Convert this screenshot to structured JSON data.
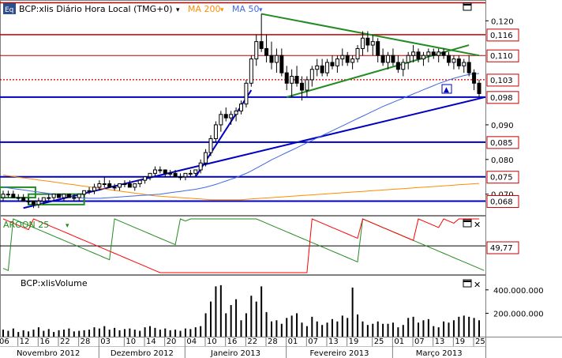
{
  "colors": {
    "frame": "#808080",
    "grid": "#000000",
    "candle_up": "#ffffff",
    "candle_down": "#000000",
    "support_lines": "#0000c0",
    "resistance_lines": "#c00000",
    "trend_green": "#228b22",
    "ma200": "#ff8c00",
    "ma50": "#4169e1",
    "aroon_up": "#228b22",
    "aroon_down": "#ff0000",
    "label_box_blue": "#0000c0",
    "label_box_red": "#c00000"
  },
  "price_panel": {
    "eq_badge": "Eq",
    "symbol_label": "BCP:xlis Diário Hora Local (TMG+0)",
    "ma200_label": "MA 200",
    "ma50_label": "MA 50",
    "y_ticks": [
      "0,120",
      "0,090",
      "0,080",
      "0,070"
    ],
    "price_boxes": [
      {
        "value": "0,116",
        "kind": "red"
      },
      {
        "value": "0,110",
        "kind": "red"
      },
      {
        "value": "0,103",
        "kind": "red"
      },
      {
        "value": "0,098",
        "kind": "red"
      },
      {
        "value": "0,085",
        "kind": "red"
      },
      {
        "value": "0,075",
        "kind": "red"
      },
      {
        "value": "0,068",
        "kind": "red"
      }
    ]
  },
  "aroon_panel": {
    "label": "AROON 25",
    "value_box": "49,77"
  },
  "volume_panel": {
    "label": "BCP:xlisVolume",
    "y_ticks": [
      "400.000.000",
      "200.000.000"
    ]
  },
  "x_axis": {
    "day_ticks": [
      "06",
      "12",
      "16",
      "22",
      "28",
      "03",
      "10",
      "14",
      "20",
      "04",
      "10",
      "16",
      "22",
      "28",
      "01",
      "07",
      "13",
      "19",
      "25",
      "01",
      "07",
      "13",
      "19",
      "25"
    ],
    "months": [
      "Novembro 2012",
      "Dezembro 2012",
      "Janeiro 2013",
      "Fevereiro 2013",
      "Março 2013"
    ]
  },
  "chart_data": {
    "type": "candlestick",
    "symbol": "BCP:xlis",
    "price_ylim": [
      0.064,
      0.126
    ],
    "horizontal_levels": [
      0.116,
      0.11,
      0.103,
      0.098,
      0.085,
      0.075,
      0.068
    ],
    "candles": [
      [
        0.069,
        0.071,
        0.068,
        0.07
      ],
      [
        0.07,
        0.071,
        0.069,
        0.07
      ],
      [
        0.07,
        0.071,
        0.069,
        0.069
      ],
      [
        0.069,
        0.07,
        0.068,
        0.069
      ],
      [
        0.069,
        0.07,
        0.068,
        0.068
      ],
      [
        0.068,
        0.069,
        0.067,
        0.068
      ],
      [
        0.068,
        0.068,
        0.066,
        0.067
      ],
      [
        0.067,
        0.069,
        0.066,
        0.068
      ],
      [
        0.068,
        0.069,
        0.067,
        0.069
      ],
      [
        0.069,
        0.07,
        0.068,
        0.069
      ],
      [
        0.069,
        0.07,
        0.068,
        0.07
      ],
      [
        0.07,
        0.07,
        0.069,
        0.069
      ],
      [
        0.069,
        0.07,
        0.068,
        0.07
      ],
      [
        0.07,
        0.07,
        0.069,
        0.069
      ],
      [
        0.069,
        0.07,
        0.068,
        0.069
      ],
      [
        0.069,
        0.07,
        0.068,
        0.07
      ],
      [
        0.07,
        0.071,
        0.069,
        0.071
      ],
      [
        0.071,
        0.072,
        0.07,
        0.071
      ],
      [
        0.071,
        0.073,
        0.07,
        0.072
      ],
      [
        0.072,
        0.074,
        0.071,
        0.073
      ],
      [
        0.073,
        0.075,
        0.072,
        0.073
      ],
      [
        0.073,
        0.074,
        0.072,
        0.072
      ],
      [
        0.072,
        0.073,
        0.071,
        0.072
      ],
      [
        0.072,
        0.073,
        0.071,
        0.073
      ],
      [
        0.073,
        0.074,
        0.072,
        0.073
      ],
      [
        0.073,
        0.074,
        0.072,
        0.072
      ],
      [
        0.072,
        0.073,
        0.071,
        0.073
      ],
      [
        0.073,
        0.074,
        0.072,
        0.074
      ],
      [
        0.074,
        0.075,
        0.073,
        0.075
      ],
      [
        0.075,
        0.076,
        0.074,
        0.076
      ],
      [
        0.076,
        0.078,
        0.075,
        0.077
      ],
      [
        0.077,
        0.078,
        0.076,
        0.077
      ],
      [
        0.077,
        0.077,
        0.075,
        0.076
      ],
      [
        0.076,
        0.077,
        0.075,
        0.076
      ],
      [
        0.076,
        0.077,
        0.075,
        0.075
      ],
      [
        0.075,
        0.076,
        0.074,
        0.075
      ],
      [
        0.075,
        0.076,
        0.074,
        0.076
      ],
      [
        0.076,
        0.077,
        0.075,
        0.076
      ],
      [
        0.076,
        0.077,
        0.075,
        0.077
      ],
      [
        0.077,
        0.08,
        0.076,
        0.079
      ],
      [
        0.079,
        0.083,
        0.078,
        0.082
      ],
      [
        0.082,
        0.087,
        0.081,
        0.086
      ],
      [
        0.086,
        0.091,
        0.085,
        0.09
      ],
      [
        0.09,
        0.094,
        0.088,
        0.093
      ],
      [
        0.093,
        0.095,
        0.091,
        0.092
      ],
      [
        0.092,
        0.094,
        0.09,
        0.093
      ],
      [
        0.093,
        0.095,
        0.091,
        0.094
      ],
      [
        0.094,
        0.097,
        0.093,
        0.096
      ],
      [
        0.096,
        0.103,
        0.095,
        0.102
      ],
      [
        0.102,
        0.11,
        0.101,
        0.109
      ],
      [
        0.109,
        0.116,
        0.107,
        0.114
      ],
      [
        0.114,
        0.122,
        0.111,
        0.112
      ],
      [
        0.112,
        0.116,
        0.108,
        0.11
      ],
      [
        0.11,
        0.114,
        0.106,
        0.108
      ],
      [
        0.108,
        0.112,
        0.105,
        0.11
      ],
      [
        0.11,
        0.112,
        0.104,
        0.105
      ],
      [
        0.105,
        0.107,
        0.1,
        0.102
      ],
      [
        0.102,
        0.106,
        0.098,
        0.104
      ],
      [
        0.104,
        0.107,
        0.101,
        0.102
      ],
      [
        0.102,
        0.104,
        0.097,
        0.1
      ],
      [
        0.1,
        0.104,
        0.098,
        0.103
      ],
      [
        0.103,
        0.107,
        0.101,
        0.106
      ],
      [
        0.106,
        0.109,
        0.104,
        0.107
      ],
      [
        0.107,
        0.109,
        0.104,
        0.105
      ],
      [
        0.105,
        0.109,
        0.104,
        0.108
      ],
      [
        0.108,
        0.11,
        0.106,
        0.107
      ],
      [
        0.107,
        0.11,
        0.105,
        0.109
      ],
      [
        0.109,
        0.112,
        0.107,
        0.11
      ],
      [
        0.11,
        0.111,
        0.107,
        0.108
      ],
      [
        0.108,
        0.11,
        0.106,
        0.109
      ],
      [
        0.109,
        0.113,
        0.108,
        0.112
      ],
      [
        0.112,
        0.117,
        0.11,
        0.115
      ],
      [
        0.115,
        0.117,
        0.111,
        0.113
      ],
      [
        0.113,
        0.116,
        0.11,
        0.114
      ],
      [
        0.114,
        0.115,
        0.108,
        0.11
      ],
      [
        0.11,
        0.112,
        0.107,
        0.108
      ],
      [
        0.108,
        0.111,
        0.106,
        0.11
      ],
      [
        0.11,
        0.112,
        0.107,
        0.108
      ],
      [
        0.108,
        0.11,
        0.105,
        0.106
      ],
      [
        0.106,
        0.109,
        0.104,
        0.108
      ],
      [
        0.108,
        0.111,
        0.106,
        0.11
      ],
      [
        0.11,
        0.113,
        0.108,
        0.111
      ],
      [
        0.111,
        0.112,
        0.108,
        0.109
      ],
      [
        0.109,
        0.111,
        0.107,
        0.11
      ],
      [
        0.11,
        0.112,
        0.108,
        0.111
      ],
      [
        0.111,
        0.112,
        0.109,
        0.11
      ],
      [
        0.11,
        0.112,
        0.108,
        0.111
      ],
      [
        0.111,
        0.112,
        0.109,
        0.11
      ],
      [
        0.11,
        0.111,
        0.107,
        0.108
      ],
      [
        0.108,
        0.11,
        0.106,
        0.109
      ],
      [
        0.109,
        0.11,
        0.106,
        0.107
      ],
      [
        0.107,
        0.109,
        0.105,
        0.108
      ],
      [
        0.108,
        0.11,
        0.104,
        0.105
      ],
      [
        0.105,
        0.106,
        0.1,
        0.102
      ],
      [
        0.102,
        0.103,
        0.098,
        0.099
      ]
    ],
    "ma50": [
      0.072,
      0.0718,
      0.0716,
      0.0714,
      0.0712,
      0.071,
      0.0708,
      0.0706,
      0.0704,
      0.0702,
      0.07,
      0.0698,
      0.0696,
      0.0694,
      0.0692,
      0.069,
      0.0689,
      0.0688,
      0.0688,
      0.0688,
      0.0689,
      0.069,
      0.0691,
      0.0692,
      0.0693,
      0.0694,
      0.0695,
      0.0696,
      0.0697,
      0.0698,
      0.0699,
      0.07,
      0.0702,
      0.0704,
      0.0706,
      0.0708,
      0.071,
      0.0712,
      0.0714,
      0.0717,
      0.072,
      0.0724,
      0.0728,
      0.0733,
      0.0738,
      0.0743,
      0.0748,
      0.0754,
      0.076,
      0.0767,
      0.0775,
      0.0783,
      0.0791,
      0.0799,
      0.0806,
      0.0813,
      0.082,
      0.0827,
      0.0834,
      0.0841,
      0.0848,
      0.0855,
      0.0862,
      0.0869,
      0.0876,
      0.0883,
      0.089,
      0.0897,
      0.0904,
      0.0911,
      0.0918,
      0.0925,
      0.0932,
      0.0939,
      0.0946,
      0.0953,
      0.0959,
      0.0965,
      0.0971,
      0.0977,
      0.0983,
      0.0989,
      0.0995,
      0.1001,
      0.1007,
      0.1013,
      0.1019,
      0.1024,
      0.1029,
      0.1034,
      0.1038,
      0.1042,
      0.1045,
      0.1047,
      0.1048
    ],
    "ma200": [
      0.0755,
      0.0753,
      0.0751,
      0.0749,
      0.0747,
      0.0745,
      0.0743,
      0.0741,
      0.0739,
      0.0737,
      0.0735,
      0.0733,
      0.0731,
      0.0729,
      0.0727,
      0.0725,
      0.0723,
      0.0721,
      0.0719,
      0.0717,
      0.0715,
      0.0713,
      0.0711,
      0.0709,
      0.0707,
      0.0705,
      0.0703,
      0.0701,
      0.0699,
      0.0697,
      0.0695,
      0.0694,
      0.0693,
      0.0692,
      0.0691,
      0.069,
      0.0689,
      0.0688,
      0.0687,
      0.0686,
      0.0685,
      0.0684,
      0.0684,
      0.0684,
      0.0684,
      0.0684,
      0.0684,
      0.0684,
      0.0685,
      0.0686,
      0.0687,
      0.0688,
      0.0689,
      0.069,
      0.0691,
      0.0692,
      0.0693,
      0.0694,
      0.0695,
      0.0696,
      0.0697,
      0.0698,
      0.0699,
      0.07,
      0.0701,
      0.0702,
      0.0703,
      0.0704,
      0.0705,
      0.0706,
      0.0707,
      0.0708,
      0.0709,
      0.071,
      0.0711,
      0.0712,
      0.0713,
      0.0714,
      0.0715,
      0.0716,
      0.0717,
      0.0718,
      0.0719,
      0.072,
      0.0721,
      0.0722,
      0.0723,
      0.0724,
      0.0725,
      0.0726,
      0.0727,
      0.0728,
      0.0729,
      0.073,
      0.0731
    ],
    "aroon_up": [
      8,
      4,
      100,
      96,
      92,
      88,
      84,
      80,
      76,
      72,
      68,
      64,
      60,
      56,
      52,
      48,
      44,
      40,
      36,
      32,
      28,
      24,
      100,
      96,
      92,
      88,
      84,
      80,
      76,
      72,
      68,
      64,
      60,
      56,
      52,
      100,
      96,
      100,
      100,
      100,
      100,
      100,
      100,
      100,
      100,
      100,
      100,
      100,
      100,
      100,
      100,
      96,
      92,
      88,
      84,
      80,
      76,
      72,
      68,
      64,
      60,
      56,
      52,
      48,
      44,
      40,
      36,
      32,
      28,
      24,
      20,
      100,
      96,
      92,
      88,
      84,
      80,
      76,
      72,
      68,
      64,
      60,
      56,
      52,
      48,
      44,
      40,
      36,
      32,
      28,
      24,
      20,
      16,
      12,
      8,
      4
    ],
    "aroon_down": [
      100,
      96,
      92,
      88,
      84,
      80,
      100,
      96,
      92,
      88,
      84,
      80,
      76,
      72,
      68,
      64,
      60,
      56,
      52,
      48,
      44,
      40,
      36,
      32,
      28,
      24,
      20,
      16,
      12,
      8,
      4,
      0,
      0,
      0,
      0,
      0,
      0,
      0,
      0,
      0,
      0,
      0,
      0,
      0,
      0,
      0,
      0,
      0,
      0,
      0,
      0,
      0,
      0,
      0,
      0,
      0,
      0,
      0,
      0,
      0,
      0,
      100,
      96,
      92,
      88,
      84,
      80,
      76,
      72,
      68,
      64,
      100,
      96,
      92,
      88,
      84,
      80,
      76,
      72,
      68,
      64,
      60,
      100,
      96,
      92,
      88,
      84,
      100,
      96,
      92,
      100,
      100,
      100,
      100,
      100
    ],
    "volume_millions": [
      60,
      50,
      70,
      40,
      55,
      45,
      60,
      80,
      50,
      65,
      40,
      55,
      60,
      70,
      45,
      50,
      55,
      60,
      80,
      70,
      90,
      60,
      75,
      55,
      65,
      70,
      60,
      50,
      80,
      90,
      75,
      60,
      70,
      55,
      60,
      50,
      70,
      65,
      80,
      90,
      200,
      300,
      430,
      440,
      200,
      270,
      320,
      140,
      200,
      350,
      300,
      430,
      210,
      130,
      140,
      110,
      160,
      180,
      200,
      120,
      90,
      170,
      130,
      100,
      120,
      150,
      130,
      180,
      160,
      420,
      190,
      130,
      100,
      110,
      130,
      110,
      110,
      120,
      80,
      100,
      160,
      170,
      120,
      140,
      150,
      90,
      80,
      130,
      120,
      140,
      170,
      180,
      170,
      160,
      140
    ]
  }
}
